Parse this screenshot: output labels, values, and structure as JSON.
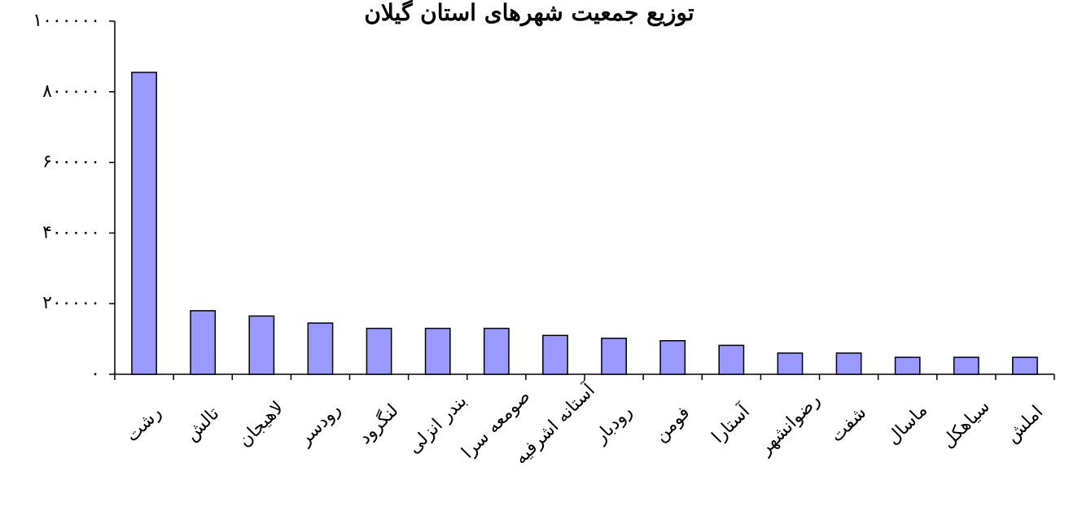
{
  "chart_data": {
    "type": "bar",
    "title": "توزیع جمعیت شهرهای استان گیلان",
    "xlabel": "",
    "ylabel": "",
    "ylim": [
      0,
      1000000
    ],
    "yticks": [
      0,
      200000,
      400000,
      600000,
      800000,
      1000000
    ],
    "ytick_labels": [
      "۰",
      "۲۰۰۰۰۰",
      "۴۰۰۰۰۰",
      "۶۰۰۰۰۰",
      "۸۰۰۰۰۰",
      "۱۰۰۰۰۰۰"
    ],
    "categories": [
      "رشت",
      "تالش",
      "لاهیجان",
      "رودسر",
      "لنگرود",
      "بندر انزلی",
      "صومعه سرا",
      "آستانه اشرفیه",
      "رودبار",
      "فومن",
      "آستارا",
      "رضوانشهر",
      "شفت",
      "ماسال",
      "سیاهکل",
      "املش"
    ],
    "values": [
      855000,
      180000,
      165000,
      145000,
      130000,
      130000,
      130000,
      110000,
      102000,
      95000,
      82000,
      60000,
      60000,
      48000,
      48000,
      48000
    ],
    "grid": false,
    "legend": "none",
    "bar_color": "#9999ff",
    "bar_edge_color": "#000000"
  }
}
